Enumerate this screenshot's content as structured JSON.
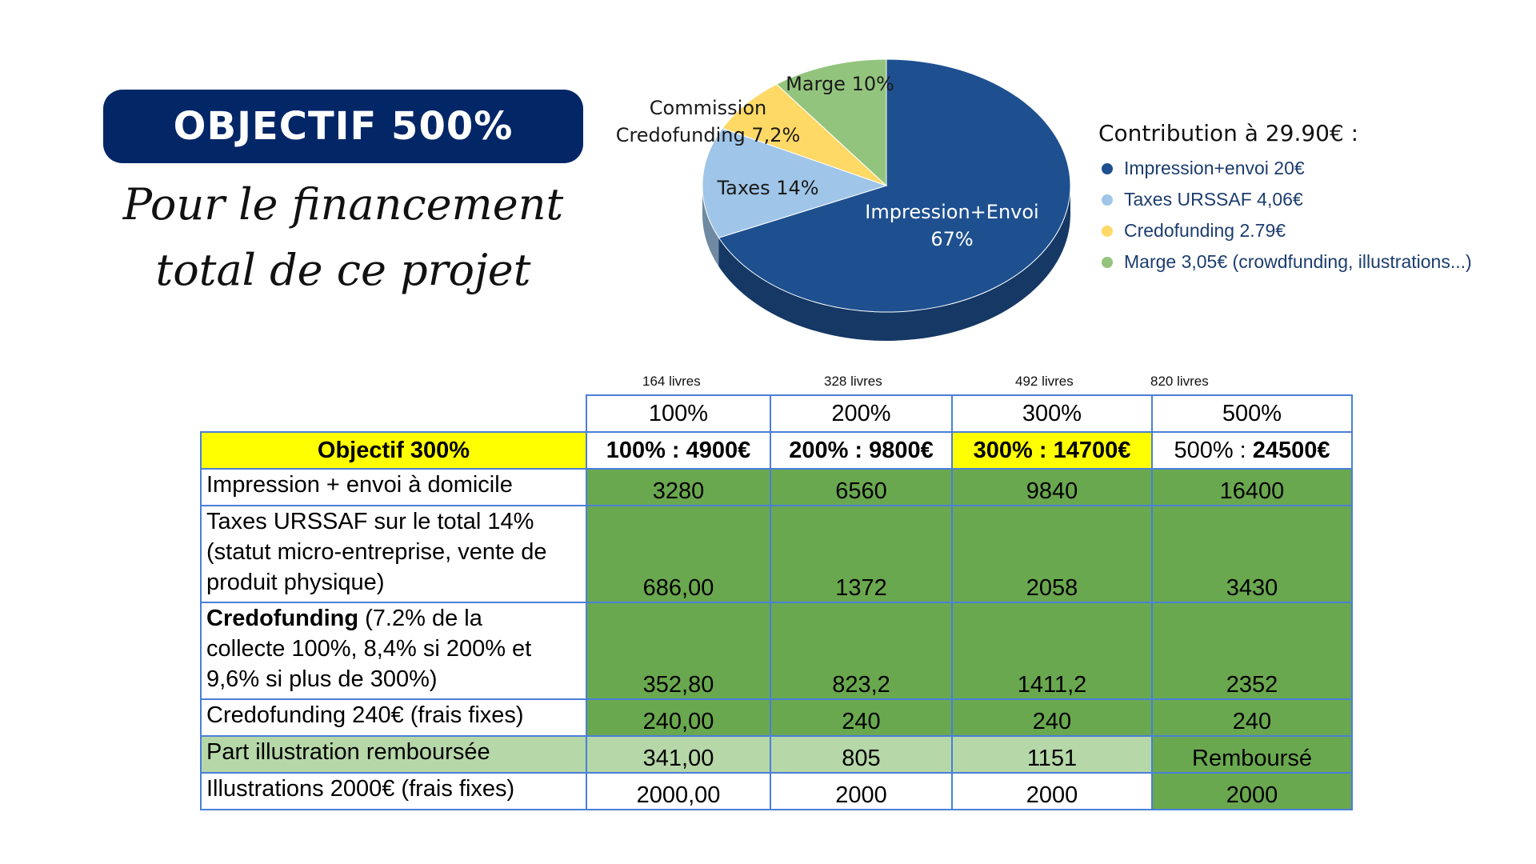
{
  "header": {
    "badge": "OBJECTIF 500%",
    "subtitle_line1": "Pour le financement",
    "subtitle_line2": "total de ce projet"
  },
  "chart_data": {
    "type": "pie",
    "slices": [
      {
        "label_line1": "Impression+Envoi",
        "label_line2": "67%",
        "value": 67,
        "color": "#1e5090"
      },
      {
        "label_line1": "Taxes 14%",
        "label_line2": "",
        "value": 14,
        "color": "#9fc5e8"
      },
      {
        "label_line1": "Commission",
        "label_line2": "Credofunding 7,2%",
        "value": 7.2,
        "color": "#ffd966"
      },
      {
        "label_line1": "Marge 10%",
        "label_line2": "",
        "value": 10,
        "color": "#93c47d"
      }
    ],
    "legend_title": "Contribution à 29.90€ :",
    "legend": [
      {
        "label": "Impression+envoi 20€",
        "color": "#1e5090"
      },
      {
        "label": "Taxes URSSAF 4,06€",
        "color": "#9fc5e8"
      },
      {
        "label": "Credofunding 2.79€",
        "color": "#ffd966"
      },
      {
        "label": "Marge 3,05€ (crowdfunding, illustrations...)",
        "color": "#93c47d"
      }
    ]
  },
  "table": {
    "books": [
      "164 livres",
      "328 livres",
      "492 livres",
      "820 livres"
    ],
    "percent_headers": [
      "100%",
      "200%",
      "300%",
      "500%"
    ],
    "objective_label": "Objectif 300%",
    "objective_cells": [
      {
        "pct": "100% : ",
        "amount": "4900€"
      },
      {
        "pct": "200% : ",
        "amount": "9800€"
      },
      {
        "pct": "300% : ",
        "amount": "14700€"
      },
      {
        "pct": "500% : ",
        "amount": "24500€"
      }
    ],
    "rows": [
      {
        "label_bold": "",
        "label_lines": [
          "Impression + envoi à domicile"
        ],
        "values": [
          "3280",
          "6560",
          "9840",
          "16400"
        ]
      },
      {
        "label_bold": "",
        "label_lines": [
          "Taxes URSSAF sur le total 14%",
          "(statut micro-entreprise, vente de",
          "produit physique)"
        ],
        "values": [
          "686,00",
          "1372",
          "2058",
          "3430"
        ]
      },
      {
        "label_bold": "Credofunding",
        "label_lines": [
          " (7.2% de la",
          "collecte 100%, 8,4% si 200% et",
          "9,6% si plus de 300%)"
        ],
        "values": [
          "352,80",
          "823,2",
          "1411,2",
          "2352"
        ]
      },
      {
        "label_bold": "",
        "label_lines": [
          "Credofunding 240€ (frais fixes)"
        ],
        "values": [
          "240,00",
          "240",
          "240",
          "240"
        ]
      },
      {
        "label_bold": "",
        "label_lines": [
          "Part illustration remboursée"
        ],
        "values": [
          "341,00",
          "805",
          "1151",
          "Remboursé"
        ]
      },
      {
        "label_bold": "",
        "label_lines": [
          "Illustrations 2000€ (frais fixes)"
        ],
        "values": [
          "2000,00",
          "2000",
          "2000",
          "2000"
        ]
      }
    ]
  }
}
